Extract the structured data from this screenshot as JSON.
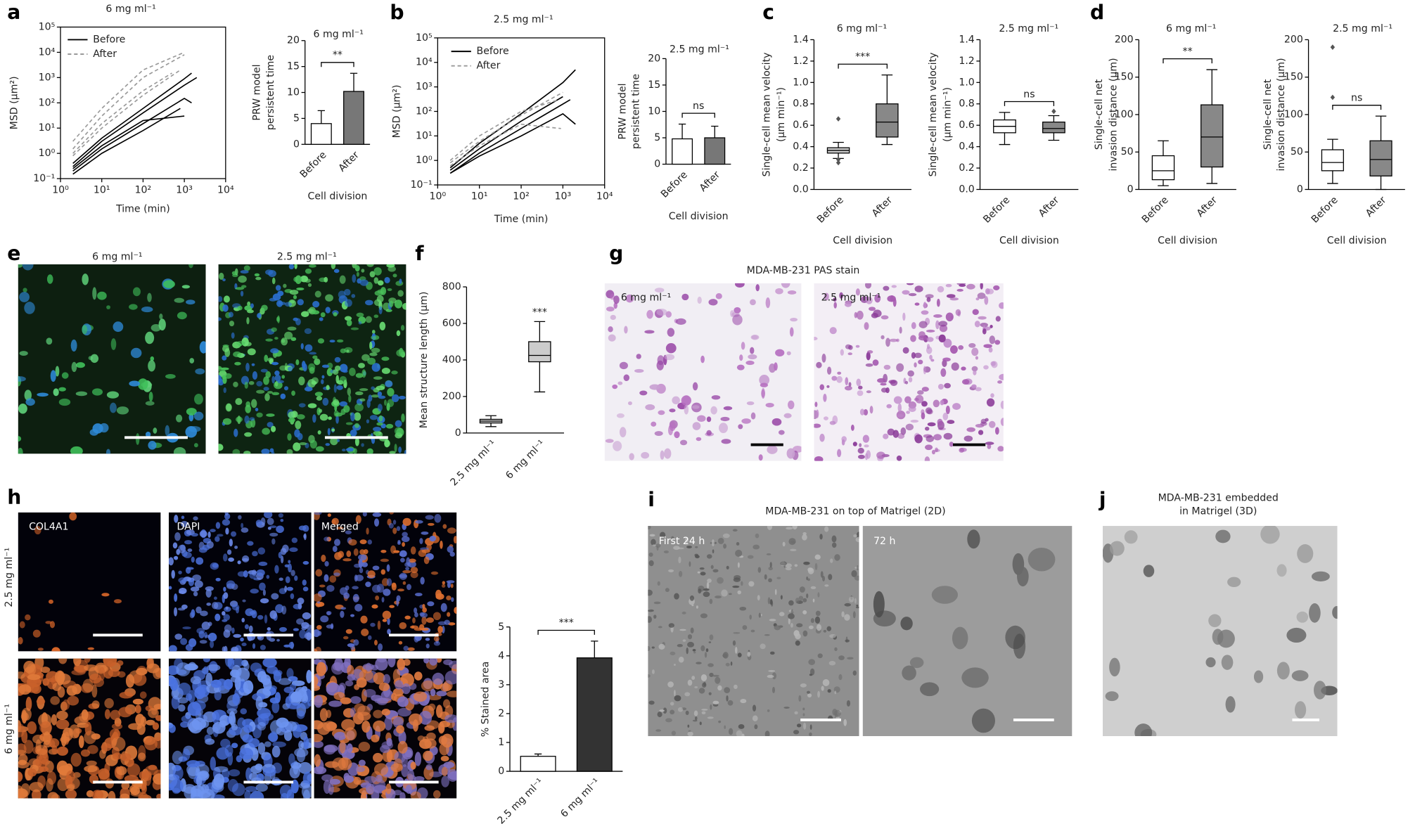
{
  "chart_data": [
    {
      "type": "line",
      "panel": "a",
      "title": "6 mg ml⁻¹",
      "xlabel": "Time (min)",
      "ylabel": [
        "MSD (μm²)"
      ],
      "xlog": true,
      "ylog": true,
      "frame": true,
      "legend": "upper left",
      "xlim": [
        1,
        10000
      ],
      "ylim": [
        0.1,
        100000
      ],
      "xticks": [
        {
          "value": 1,
          "label": "10⁰"
        },
        {
          "value": 10,
          "label": "10¹"
        },
        {
          "value": 100,
          "label": "10²"
        },
        {
          "value": 1000,
          "label": "10³"
        },
        {
          "value": 10000,
          "label": "10⁴"
        }
      ],
      "yticks": [
        {
          "value": 0.1,
          "label": "10⁻¹"
        },
        {
          "value": 1,
          "label": "10⁰"
        },
        {
          "value": 10,
          "label": "10¹"
        },
        {
          "value": 100,
          "label": "10²"
        },
        {
          "value": 1000,
          "label": "10³"
        },
        {
          "value": 10000,
          "label": "10⁴"
        },
        {
          "value": 100000,
          "label": "10⁵"
        }
      ],
      "series": [
        {
          "name": "Before",
          "color": "#000000",
          "dash": false,
          "traces": [
            {
              "x": [
                2,
                10,
                100,
                1000,
                2000
              ],
              "values": [
                0.3,
                3,
                40,
                500,
                1000
              ]
            },
            {
              "x": [
                2,
                10,
                100,
                1000,
                1500
              ],
              "values": [
                0.2,
                1.5,
                15,
                150,
                100
              ]
            },
            {
              "x": [
                2,
                10,
                100,
                800
              ],
              "values": [
                0.15,
                1,
                8,
                60
              ]
            },
            {
              "x": [
                2,
                10,
                100,
                1000,
                1500
              ],
              "values": [
                0.4,
                4,
                60,
                900,
                1500
              ]
            },
            {
              "x": [
                2,
                10,
                100,
                1000
              ],
              "values": [
                0.25,
                2,
                20,
                30
              ]
            }
          ]
        },
        {
          "name": "After",
          "color": "#999999",
          "dash": true,
          "traces": [
            {
              "x": [
                2,
                10,
                100,
                1000
              ],
              "values": [
                1.5,
                30,
                1000,
                8000
              ]
            },
            {
              "x": [
                2,
                10,
                100,
                800
              ],
              "values": [
                0.8,
                10,
                200,
                2000
              ]
            },
            {
              "x": [
                2,
                10,
                100,
                1000
              ],
              "values": [
                3,
                60,
                2000,
                10000
              ]
            },
            {
              "x": [
                2,
                10,
                100,
                500
              ],
              "values": [
                1,
                15,
                300,
                1500
              ]
            }
          ]
        }
      ]
    },
    {
      "type": "bar",
      "title": "6 mg ml⁻¹",
      "xlabel": "Cell division",
      "ylabel": [
        "PRW model",
        "persistent time"
      ],
      "categories": [
        "Before",
        "After"
      ],
      "values": [
        4,
        10.2
      ],
      "errors": [
        2.5,
        3.5
      ],
      "colors": [
        "#ffffff",
        "#777777"
      ],
      "ylim": [
        0,
        20
      ],
      "yticks": [
        0,
        5,
        10,
        15,
        20
      ],
      "significance": "**"
    },
    {
      "type": "line",
      "panel": "b",
      "title": "2.5 mg ml⁻¹",
      "xlabel": "Time (min)",
      "ylabel": [
        "MSD (μm²)"
      ],
      "xlog": true,
      "ylog": true,
      "frame": true,
      "legend": "upper left",
      "xlim": [
        1,
        10000
      ],
      "ylim": [
        0.1,
        100000
      ],
      "xticks": [
        {
          "value": 1,
          "label": "10⁰"
        },
        {
          "value": 10,
          "label": "10¹"
        },
        {
          "value": 100,
          "label": "10²"
        },
        {
          "value": 1000,
          "label": "10³"
        },
        {
          "value": 10000,
          "label": "10⁴"
        }
      ],
      "yticks": [
        {
          "value": 0.1,
          "label": "10⁻¹"
        },
        {
          "value": 1,
          "label": "10⁰"
        },
        {
          "value": 10,
          "label": "10¹"
        },
        {
          "value": 100,
          "label": "10²"
        },
        {
          "value": 1000,
          "label": "10³"
        },
        {
          "value": 10000,
          "label": "10⁴"
        },
        {
          "value": 100000,
          "label": "10⁵"
        }
      ],
      "series": [
        {
          "name": "Before",
          "color": "#000000",
          "dash": false,
          "traces": [
            {
              "x": [
                2,
                10,
                100,
                1000,
                2000
              ],
              "values": [
                0.5,
                5,
                80,
                1500,
                5000
              ]
            },
            {
              "x": [
                2,
                10,
                100,
                1000,
                1500
              ],
              "values": [
                0.3,
                2,
                20,
                200,
                300
              ]
            },
            {
              "x": [
                2,
                10,
                100,
                1000
              ],
              "values": [
                0.4,
                3,
                40,
                400
              ]
            },
            {
              "x": [
                2,
                10,
                100,
                1000,
                2000
              ],
              "values": [
                0.3,
                1.5,
                10,
                80,
                30
              ]
            }
          ]
        },
        {
          "name": "After",
          "color": "#999999",
          "dash": true,
          "traces": [
            {
              "x": [
                2,
                10,
                100,
                1000
              ],
              "values": [
                0.8,
                6,
                70,
                600
              ]
            },
            {
              "x": [
                2,
                10,
                100,
                800
              ],
              "values": [
                1,
                10,
                100,
                300
              ]
            },
            {
              "x": [
                2,
                10,
                100,
                900
              ],
              "values": [
                0.6,
                4,
                30,
                20
              ]
            }
          ]
        }
      ]
    },
    {
      "type": "bar",
      "title": "2.5 mg ml⁻¹",
      "xlabel": "Cell division",
      "ylabel": [
        "PRW model",
        "persistent time"
      ],
      "categories": [
        "Before",
        "After"
      ],
      "values": [
        4.8,
        5
      ],
      "errors": [
        2.8,
        2.2
      ],
      "colors": [
        "#ffffff",
        "#777777"
      ],
      "ylim": [
        0,
        20
      ],
      "yticks": [
        0,
        5,
        10,
        15,
        20
      ],
      "significance": "ns"
    },
    {
      "type": "box",
      "panel": "c",
      "title": "6 mg ml⁻¹",
      "xlabel": "Cell division",
      "ylabel": [
        "Single-cell mean velocity",
        "(μm min⁻¹)"
      ],
      "categories": [
        "Before",
        "After"
      ],
      "colors": [
        "#cccccc",
        "#888888"
      ],
      "boxes": [
        {
          "whislo": 0.29,
          "q1": 0.34,
          "med": 0.365,
          "q3": 0.39,
          "whishi": 0.44,
          "fliers": [
            0.66,
            0.25,
            0.28
          ]
        },
        {
          "whislo": 0.42,
          "q1": 0.49,
          "med": 0.63,
          "q3": 0.8,
          "whishi": 1.07,
          "fliers": []
        }
      ],
      "ylim": [
        0,
        1.4
      ],
      "yticks": [
        {
          "value": 0,
          "label": "0.0"
        },
        0.2,
        0.4,
        0.6,
        0.8,
        {
          "value": 1,
          "label": "1.0"
        },
        1.2,
        1.4
      ],
      "significance": "***"
    },
    {
      "type": "box",
      "title": "2.5 mg ml⁻¹",
      "xlabel": "Cell division",
      "ylabel": [
        "Single-cell mean velocity",
        "(μm min⁻¹)"
      ],
      "categories": [
        "Before",
        "After"
      ],
      "colors": [
        "#ffffff",
        "#888888"
      ],
      "boxes": [
        {
          "whislo": 0.42,
          "q1": 0.53,
          "med": 0.59,
          "q3": 0.65,
          "whishi": 0.72,
          "fliers": []
        },
        {
          "whislo": 0.46,
          "q1": 0.53,
          "med": 0.57,
          "q3": 0.63,
          "whishi": 0.69,
          "fliers": [
            0.73
          ]
        }
      ],
      "ylim": [
        0,
        1.4
      ],
      "yticks": [
        {
          "value": 0,
          "label": "0.0"
        },
        0.2,
        0.4,
        0.6,
        0.8,
        {
          "value": 1,
          "label": "1.0"
        },
        1.2,
        1.4
      ],
      "significance": "ns"
    },
    {
      "type": "box",
      "panel": "d",
      "title": "6 mg ml⁻¹",
      "xlabel": "Cell division",
      "ylabel": [
        "Single-cell net",
        "invasion distance (μm)"
      ],
      "categories": [
        "Before",
        "After"
      ],
      "colors": [
        "#ffffff",
        "#888888"
      ],
      "boxes": [
        {
          "whislo": 5,
          "q1": 13,
          "med": 25,
          "q3": 45,
          "whishi": 65,
          "fliers": []
        },
        {
          "whislo": 8,
          "q1": 30,
          "med": 70,
          "q3": 113,
          "whishi": 160,
          "fliers": []
        }
      ],
      "ylim": [
        0,
        200
      ],
      "yticks": [
        0,
        50,
        100,
        150,
        200
      ],
      "significance": "**"
    },
    {
      "type": "box",
      "title": "2.5 mg ml⁻¹",
      "xlabel": "Cell division",
      "ylabel": [
        "Single-cell net",
        "invasion distance (μm)"
      ],
      "categories": [
        "Before",
        "After"
      ],
      "colors": [
        "#ffffff",
        "#888888"
      ],
      "boxes": [
        {
          "whislo": 8,
          "q1": 25,
          "med": 36,
          "q3": 53,
          "whishi": 67,
          "fliers": [
            190,
            123
          ]
        },
        {
          "whislo": 0,
          "q1": 18,
          "med": 40,
          "q3": 65,
          "whishi": 98,
          "fliers": []
        }
      ],
      "ylim": [
        0,
        200
      ],
      "yticks": [
        0,
        50,
        100,
        150,
        200
      ],
      "significance": "ns"
    },
    {
      "type": "box",
      "panel": "f",
      "ylabel": [
        "Mean structure length (μm)"
      ],
      "categories": [
        "2.5 mg ml⁻¹",
        "6 mg ml⁻¹"
      ],
      "colors": [
        "#cccccc",
        "#cccccc"
      ],
      "boxes": [
        {
          "whislo": 35,
          "q1": 55,
          "med": 65,
          "q3": 75,
          "whishi": 95,
          "fliers": []
        },
        {
          "whislo": 225,
          "q1": 390,
          "med": 425,
          "q3": 500,
          "whishi": 610,
          "fliers": []
        }
      ],
      "ylim": [
        0,
        800
      ],
      "yticks": [
        0,
        200,
        400,
        600,
        800
      ],
      "significance": "***",
      "sig_single": true
    },
    {
      "type": "bar",
      "ylabel": [
        "% Stained area"
      ],
      "categories": [
        "2.5 mg ml⁻¹",
        "6 mg ml⁻¹"
      ],
      "values": [
        0.52,
        3.93
      ],
      "errors": [
        0.08,
        0.58
      ],
      "colors": [
        "#ffffff",
        "#333333"
      ],
      "ylim": [
        0,
        5
      ],
      "yticks": [
        0,
        1,
        2,
        3,
        4,
        5
      ],
      "significance": "***"
    }
  ],
  "figure_panels": {
    "e": {
      "label": "e",
      "titles": [
        "6 mg ml⁻¹",
        "2.5 mg ml⁻¹"
      ]
    },
    "g": {
      "label": "g",
      "title": "MDA-MB-231 PAS stain",
      "insets": [
        "6 mg ml⁻¹",
        "2.5 mg ml⁻¹"
      ]
    },
    "h": {
      "label": "h",
      "columns": [
        "COL4A1",
        "DAPI",
        "Merged"
      ],
      "rows": [
        "2.5 mg ml⁻¹",
        "6 mg ml⁻¹"
      ]
    },
    "i": {
      "label": "i",
      "title": "MDA-MB-231 on top of Matrigel (2D)",
      "insets": [
        "First 24 h",
        "72 h"
      ]
    },
    "j": {
      "label": "j",
      "title": [
        "MDA-MB-231 embedded",
        "in Matrigel (3D)"
      ]
    }
  }
}
